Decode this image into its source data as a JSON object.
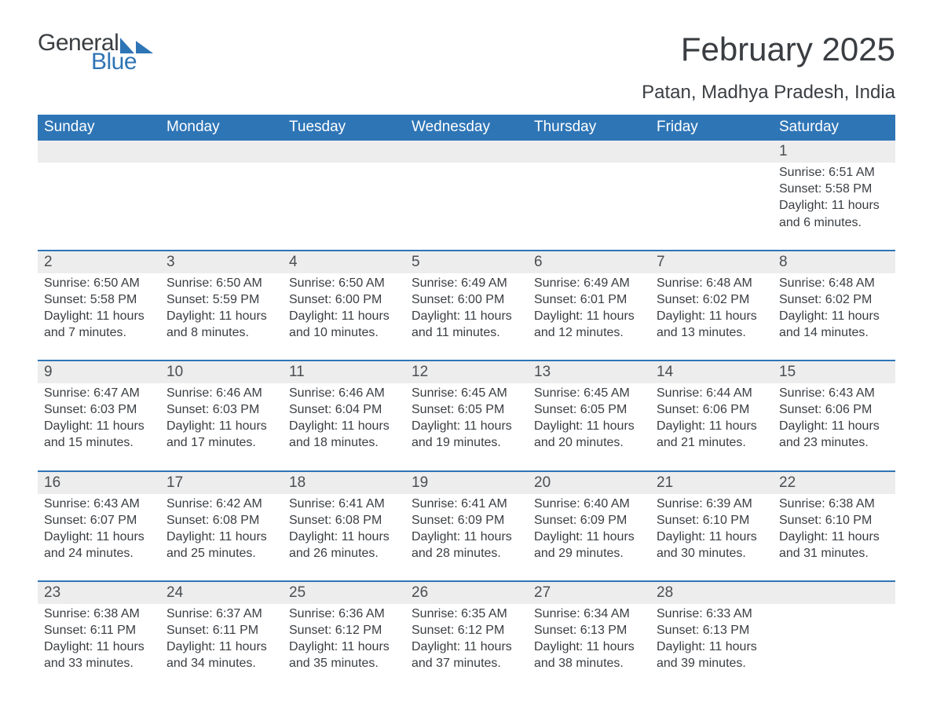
{
  "brand": {
    "word1": "General",
    "word2": "Blue",
    "icon_color": "#2e75b6",
    "text_color": "#3a3e42"
  },
  "title": "February 2025",
  "location": "Patan, Madhya Pradesh, India",
  "colors": {
    "header_bg": "#2e75b6",
    "header_text": "#ffffff",
    "row_accent": "#ededed",
    "row_border": "#2e75b6",
    "body_text": "#3a3e42"
  },
  "day_headers": [
    "Sunday",
    "Monday",
    "Tuesday",
    "Wednesday",
    "Thursday",
    "Friday",
    "Saturday"
  ],
  "weeks": [
    {
      "days": [
        {
          "num": "",
          "lines": []
        },
        {
          "num": "",
          "lines": []
        },
        {
          "num": "",
          "lines": []
        },
        {
          "num": "",
          "lines": []
        },
        {
          "num": "",
          "lines": []
        },
        {
          "num": "",
          "lines": []
        },
        {
          "num": "1",
          "lines": [
            "Sunrise: 6:51 AM",
            "Sunset: 5:58 PM",
            "Daylight: 11 hours and 6 minutes."
          ]
        }
      ]
    },
    {
      "days": [
        {
          "num": "2",
          "lines": [
            "Sunrise: 6:50 AM",
            "Sunset: 5:58 PM",
            "Daylight: 11 hours and 7 minutes."
          ]
        },
        {
          "num": "3",
          "lines": [
            "Sunrise: 6:50 AM",
            "Sunset: 5:59 PM",
            "Daylight: 11 hours and 8 minutes."
          ]
        },
        {
          "num": "4",
          "lines": [
            "Sunrise: 6:50 AM",
            "Sunset: 6:00 PM",
            "Daylight: 11 hours and 10 minutes."
          ]
        },
        {
          "num": "5",
          "lines": [
            "Sunrise: 6:49 AM",
            "Sunset: 6:00 PM",
            "Daylight: 11 hours and 11 minutes."
          ]
        },
        {
          "num": "6",
          "lines": [
            "Sunrise: 6:49 AM",
            "Sunset: 6:01 PM",
            "Daylight: 11 hours and 12 minutes."
          ]
        },
        {
          "num": "7",
          "lines": [
            "Sunrise: 6:48 AM",
            "Sunset: 6:02 PM",
            "Daylight: 11 hours and 13 minutes."
          ]
        },
        {
          "num": "8",
          "lines": [
            "Sunrise: 6:48 AM",
            "Sunset: 6:02 PM",
            "Daylight: 11 hours and 14 minutes."
          ]
        }
      ]
    },
    {
      "days": [
        {
          "num": "9",
          "lines": [
            "Sunrise: 6:47 AM",
            "Sunset: 6:03 PM",
            "Daylight: 11 hours and 15 minutes."
          ]
        },
        {
          "num": "10",
          "lines": [
            "Sunrise: 6:46 AM",
            "Sunset: 6:03 PM",
            "Daylight: 11 hours and 17 minutes."
          ]
        },
        {
          "num": "11",
          "lines": [
            "Sunrise: 6:46 AM",
            "Sunset: 6:04 PM",
            "Daylight: 11 hours and 18 minutes."
          ]
        },
        {
          "num": "12",
          "lines": [
            "Sunrise: 6:45 AM",
            "Sunset: 6:05 PM",
            "Daylight: 11 hours and 19 minutes."
          ]
        },
        {
          "num": "13",
          "lines": [
            "Sunrise: 6:45 AM",
            "Sunset: 6:05 PM",
            "Daylight: 11 hours and 20 minutes."
          ]
        },
        {
          "num": "14",
          "lines": [
            "Sunrise: 6:44 AM",
            "Sunset: 6:06 PM",
            "Daylight: 11 hours and 21 minutes."
          ]
        },
        {
          "num": "15",
          "lines": [
            "Sunrise: 6:43 AM",
            "Sunset: 6:06 PM",
            "Daylight: 11 hours and 23 minutes."
          ]
        }
      ]
    },
    {
      "days": [
        {
          "num": "16",
          "lines": [
            "Sunrise: 6:43 AM",
            "Sunset: 6:07 PM",
            "Daylight: 11 hours and 24 minutes."
          ]
        },
        {
          "num": "17",
          "lines": [
            "Sunrise: 6:42 AM",
            "Sunset: 6:08 PM",
            "Daylight: 11 hours and 25 minutes."
          ]
        },
        {
          "num": "18",
          "lines": [
            "Sunrise: 6:41 AM",
            "Sunset: 6:08 PM",
            "Daylight: 11 hours and 26 minutes."
          ]
        },
        {
          "num": "19",
          "lines": [
            "Sunrise: 6:41 AM",
            "Sunset: 6:09 PM",
            "Daylight: 11 hours and 28 minutes."
          ]
        },
        {
          "num": "20",
          "lines": [
            "Sunrise: 6:40 AM",
            "Sunset: 6:09 PM",
            "Daylight: 11 hours and 29 minutes."
          ]
        },
        {
          "num": "21",
          "lines": [
            "Sunrise: 6:39 AM",
            "Sunset: 6:10 PM",
            "Daylight: 11 hours and 30 minutes."
          ]
        },
        {
          "num": "22",
          "lines": [
            "Sunrise: 6:38 AM",
            "Sunset: 6:10 PM",
            "Daylight: 11 hours and 31 minutes."
          ]
        }
      ]
    },
    {
      "days": [
        {
          "num": "23",
          "lines": [
            "Sunrise: 6:38 AM",
            "Sunset: 6:11 PM",
            "Daylight: 11 hours and 33 minutes."
          ]
        },
        {
          "num": "24",
          "lines": [
            "Sunrise: 6:37 AM",
            "Sunset: 6:11 PM",
            "Daylight: 11 hours and 34 minutes."
          ]
        },
        {
          "num": "25",
          "lines": [
            "Sunrise: 6:36 AM",
            "Sunset: 6:12 PM",
            "Daylight: 11 hours and 35 minutes."
          ]
        },
        {
          "num": "26",
          "lines": [
            "Sunrise: 6:35 AM",
            "Sunset: 6:12 PM",
            "Daylight: 11 hours and 37 minutes."
          ]
        },
        {
          "num": "27",
          "lines": [
            "Sunrise: 6:34 AM",
            "Sunset: 6:13 PM",
            "Daylight: 11 hours and 38 minutes."
          ]
        },
        {
          "num": "28",
          "lines": [
            "Sunrise: 6:33 AM",
            "Sunset: 6:13 PM",
            "Daylight: 11 hours and 39 minutes."
          ]
        },
        {
          "num": "",
          "lines": []
        }
      ]
    }
  ]
}
